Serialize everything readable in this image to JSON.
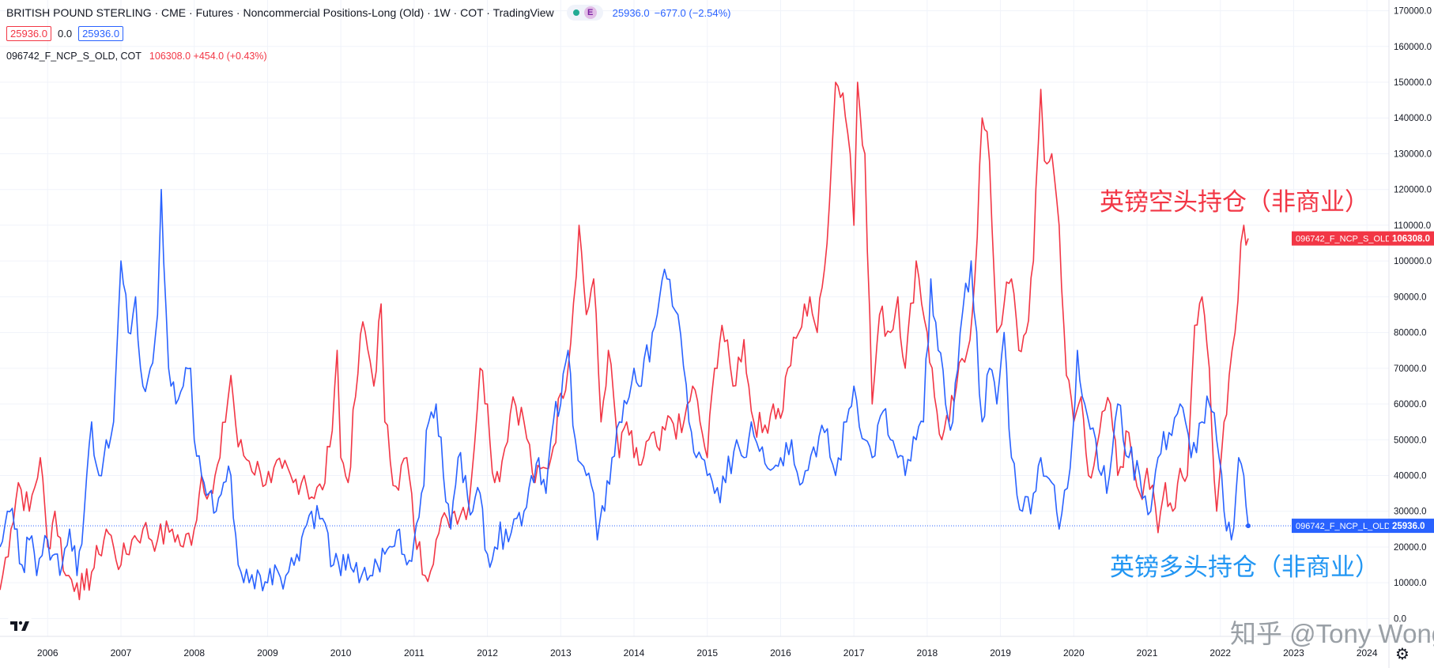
{
  "header": {
    "title": "BRITISH POUND STERLING · CME · Futures · Noncommercial Positions-Long (Old) · 1W · COT · TradingView",
    "pill_badge": "E",
    "last_value": "25936.0",
    "change": "−677.0 (−2.54%)",
    "ohlc_red": "25936.0",
    "ohlc_zero": "0.0",
    "ohlc_blue": "25936.0",
    "series2_name": "096742_F_NCP_S_OLD, COT",
    "series2_values": "106308.0  +454.0 (+0.43%)"
  },
  "annotations": {
    "short_label": "英镑空头持仓（非商业）",
    "long_label": "英镑多头持仓（非商业）",
    "watermark": "知乎 @Tony Wong"
  },
  "colors": {
    "short": "#f23645",
    "long": "#2962ff",
    "grid": "#f0f3fa"
  },
  "icons": {
    "logo": "tradingview-logo-icon",
    "settings": "gear-icon"
  },
  "chart_data": {
    "type": "line",
    "title": "BRITISH POUND STERLING · CME · Futures · Noncommercial Positions-Long (Old) · 1W · COT",
    "xlabel": "",
    "ylabel": "",
    "xlim": [
      2005.35,
      2024.3
    ],
    "ylim": [
      -5000,
      173000
    ],
    "x_ticks": [
      "2006",
      "2007",
      "2008",
      "2009",
      "2010",
      "2011",
      "2012",
      "2013",
      "2014",
      "2015",
      "2016",
      "2017",
      "2018",
      "2019",
      "2020",
      "2021",
      "2022",
      "2023",
      "2024"
    ],
    "y_ticks": [
      0,
      10000,
      20000,
      30000,
      40000,
      50000,
      60000,
      70000,
      80000,
      90000,
      100000,
      110000,
      120000,
      130000,
      140000,
      150000,
      160000,
      170000
    ],
    "y_tick_labels": [
      "0.0",
      "10000.0",
      "20000.0",
      "30000.0",
      "40000.0",
      "50000.0",
      "60000.0",
      "70000.0",
      "80000.0",
      "90000.0",
      "100000.0",
      "110000.0",
      "120000.0",
      "130000.0",
      "140000.0",
      "150000.0",
      "160000.0",
      "170000.0"
    ],
    "series": [
      {
        "name": "096742_F_NCP_S_OLD",
        "last_label": "106308.0",
        "color": "#f23645",
        "x": [
          2005.35,
          2005.5,
          2005.6,
          2005.75,
          2005.9,
          2006.0,
          2006.1,
          2006.25,
          2006.4,
          2006.5,
          2006.6,
          2006.7,
          2006.8,
          2006.9,
          2007.0,
          2007.15,
          2007.3,
          2007.5,
          2007.7,
          2007.85,
          2008.0,
          2008.1,
          2008.25,
          2008.35,
          2008.5,
          2008.6,
          2008.75,
          2008.9,
          2009.05,
          2009.2,
          2009.35,
          2009.5,
          2009.6,
          2009.75,
          2009.85,
          2009.95,
          2010.0,
          2010.1,
          2010.2,
          2010.3,
          2010.4,
          2010.45,
          2010.55,
          2010.6,
          2010.75,
          2010.9,
          2011.0,
          2011.15,
          2011.3,
          2011.45,
          2011.55,
          2011.75,
          2011.9,
          2012.0,
          2012.1,
          2012.2,
          2012.35,
          2012.5,
          2012.65,
          2012.8,
          2012.9,
          2013.0,
          2013.1,
          2013.25,
          2013.35,
          2013.45,
          2013.55,
          2013.65,
          2013.8,
          2013.9,
          2014.0,
          2014.1,
          2014.2,
          2014.35,
          2014.5,
          2014.65,
          2014.8,
          2014.9,
          2015.0,
          2015.1,
          2015.2,
          2015.35,
          2015.5,
          2015.6,
          2015.75,
          2015.9,
          2016.0,
          2016.1,
          2016.25,
          2016.4,
          2016.5,
          2016.6,
          2016.7,
          2016.75,
          2016.85,
          2016.95,
          2017.0,
          2017.05,
          2017.15,
          2017.25,
          2017.35,
          2017.5,
          2017.6,
          2017.7,
          2017.85,
          2018.0,
          2018.1,
          2018.2,
          2018.3,
          2018.4,
          2018.55,
          2018.65,
          2018.75,
          2018.85,
          2018.95,
          2019.05,
          2019.15,
          2019.25,
          2019.35,
          2019.45,
          2019.55,
          2019.6,
          2019.7,
          2019.8,
          2019.9,
          2020.0,
          2020.1,
          2020.2,
          2020.35,
          2020.5,
          2020.6,
          2020.75,
          2020.9,
          2021.0,
          2021.15,
          2021.25,
          2021.35,
          2021.45,
          2021.55,
          2021.65,
          2021.75,
          2021.85,
          2021.95,
          2022.05,
          2022.12,
          2022.2,
          2022.28,
          2022.32,
          2022.38
        ],
        "values": [
          8000,
          25000,
          38000,
          30000,
          45000,
          20000,
          30000,
          12000,
          10000,
          8000,
          13000,
          18000,
          25000,
          20000,
          15000,
          22000,
          25000,
          22000,
          25000,
          20000,
          25000,
          40000,
          35000,
          45000,
          68000,
          48000,
          44000,
          41000,
          38000,
          42000,
          38000,
          40000,
          34000,
          36000,
          48000,
          75000,
          45000,
          38000,
          62000,
          83000,
          72000,
          65000,
          88000,
          55000,
          37000,
          45000,
          25000,
          12000,
          22000,
          28000,
          30000,
          32000,
          70000,
          60000,
          38000,
          44000,
          62000,
          55000,
          38000,
          42000,
          48000,
          63000,
          70000,
          110000,
          85000,
          95000,
          55000,
          75000,
          45000,
          55000,
          45000,
          43000,
          50000,
          47000,
          56000,
          52000,
          65000,
          55000,
          45000,
          70000,
          82000,
          65000,
          78000,
          58000,
          52000,
          60000,
          56000,
          70000,
          80000,
          90000,
          80000,
          98000,
          130000,
          150000,
          147000,
          130000,
          110000,
          150000,
          130000,
          60000,
          85000,
          80000,
          90000,
          70000,
          100000,
          80000,
          62000,
          50000,
          55000,
          65000,
          75000,
          95000,
          140000,
          128000,
          80000,
          88000,
          95000,
          75000,
          80000,
          100000,
          148000,
          128000,
          130000,
          110000,
          68000,
          55000,
          62000,
          40000,
          52000,
          60000,
          40000,
          52000,
          35000,
          42000,
          24000,
          38000,
          30000,
          42000,
          40000,
          82000,
          90000,
          70000,
          30000,
          55000,
          68000,
          80000,
          105000,
          110000,
          106308
        ]
      },
      {
        "name": "096742_F_NCP_L_OLD",
        "last_label": "25936.0",
        "color": "#2962ff",
        "x": [
          2005.35,
          2005.45,
          2005.55,
          2005.65,
          2005.75,
          2005.85,
          2006.0,
          2006.1,
          2006.2,
          2006.3,
          2006.4,
          2006.5,
          2006.6,
          2006.7,
          2006.8,
          2006.9,
          2007.0,
          2007.1,
          2007.2,
          2007.3,
          2007.4,
          2007.5,
          2007.55,
          2007.65,
          2007.75,
          2007.85,
          2007.95,
          2008.0,
          2008.1,
          2008.2,
          2008.3,
          2008.4,
          2008.5,
          2008.6,
          2008.75,
          2008.9,
          2009.0,
          2009.1,
          2009.25,
          2009.4,
          2009.5,
          2009.6,
          2009.75,
          2009.9,
          2010.0,
          2010.1,
          2010.25,
          2010.4,
          2010.5,
          2010.6,
          2010.7,
          2010.8,
          2010.9,
          2011.0,
          2011.1,
          2011.2,
          2011.3,
          2011.4,
          2011.5,
          2011.6,
          2011.7,
          2011.8,
          2011.9,
          2012.0,
          2012.1,
          2012.25,
          2012.4,
          2012.5,
          2012.6,
          2012.7,
          2012.8,
          2012.9,
          2013.0,
          2013.1,
          2013.2,
          2013.35,
          2013.45,
          2013.5,
          2013.6,
          2013.7,
          2013.8,
          2013.9,
          2014.0,
          2014.1,
          2014.25,
          2014.35,
          2014.45,
          2014.6,
          2014.75,
          2014.85,
          2015.0,
          2015.1,
          2015.25,
          2015.4,
          2015.5,
          2015.6,
          2015.75,
          2015.9,
          2016.0,
          2016.15,
          2016.3,
          2016.45,
          2016.6,
          2016.75,
          2016.9,
          2017.0,
          2017.15,
          2017.25,
          2017.4,
          2017.5,
          2017.6,
          2017.7,
          2017.85,
          2017.95,
          2018.05,
          2018.15,
          2018.25,
          2018.35,
          2018.45,
          2018.6,
          2018.75,
          2018.85,
          2018.95,
          2019.05,
          2019.15,
          2019.3,
          2019.45,
          2019.55,
          2019.7,
          2019.8,
          2019.95,
          2020.05,
          2020.15,
          2020.3,
          2020.45,
          2020.6,
          2020.75,
          2020.9,
          2021.05,
          2021.15,
          2021.3,
          2021.45,
          2021.6,
          2021.75,
          2021.85,
          2021.95,
          2022.05,
          2022.15,
          2022.25,
          2022.32,
          2022.38
        ],
        "values": [
          20000,
          30000,
          25000,
          15000,
          22000,
          12000,
          22000,
          18000,
          15000,
          25000,
          12000,
          30000,
          55000,
          40000,
          50000,
          55000,
          100000,
          80000,
          90000,
          65000,
          70000,
          85000,
          120000,
          70000,
          60000,
          65000,
          70000,
          50000,
          40000,
          35000,
          30000,
          38000,
          40000,
          15000,
          10000,
          12000,
          10000,
          15000,
          12000,
          18000,
          25000,
          30000,
          28000,
          15000,
          12000,
          18000,
          10000,
          12000,
          15000,
          18000,
          20000,
          25000,
          15000,
          22000,
          35000,
          55000,
          60000,
          40000,
          25000,
          45000,
          40000,
          30000,
          35000,
          18000,
          20000,
          25000,
          28000,
          30000,
          40000,
          45000,
          35000,
          55000,
          60000,
          75000,
          50000,
          40000,
          35000,
          22000,
          30000,
          45000,
          55000,
          60000,
          70000,
          65000,
          80000,
          90000,
          95000,
          85000,
          55000,
          45000,
          40000,
          35000,
          38000,
          50000,
          45000,
          55000,
          48000,
          42000,
          45000,
          50000,
          38000,
          48000,
          52000,
          40000,
          55000,
          65000,
          50000,
          45000,
          58000,
          50000,
          45000,
          40000,
          50000,
          55000,
          95000,
          75000,
          60000,
          55000,
          80000,
          100000,
          55000,
          70000,
          60000,
          80000,
          45000,
          30000,
          35000,
          45000,
          38000,
          25000,
          42000,
          75000,
          60000,
          50000,
          35000,
          60000,
          45000,
          40000,
          30000,
          45000,
          52000,
          60000,
          45000,
          55000,
          60000,
          50000,
          30000,
          22000,
          45000,
          40000,
          25936
        ]
      }
    ]
  }
}
